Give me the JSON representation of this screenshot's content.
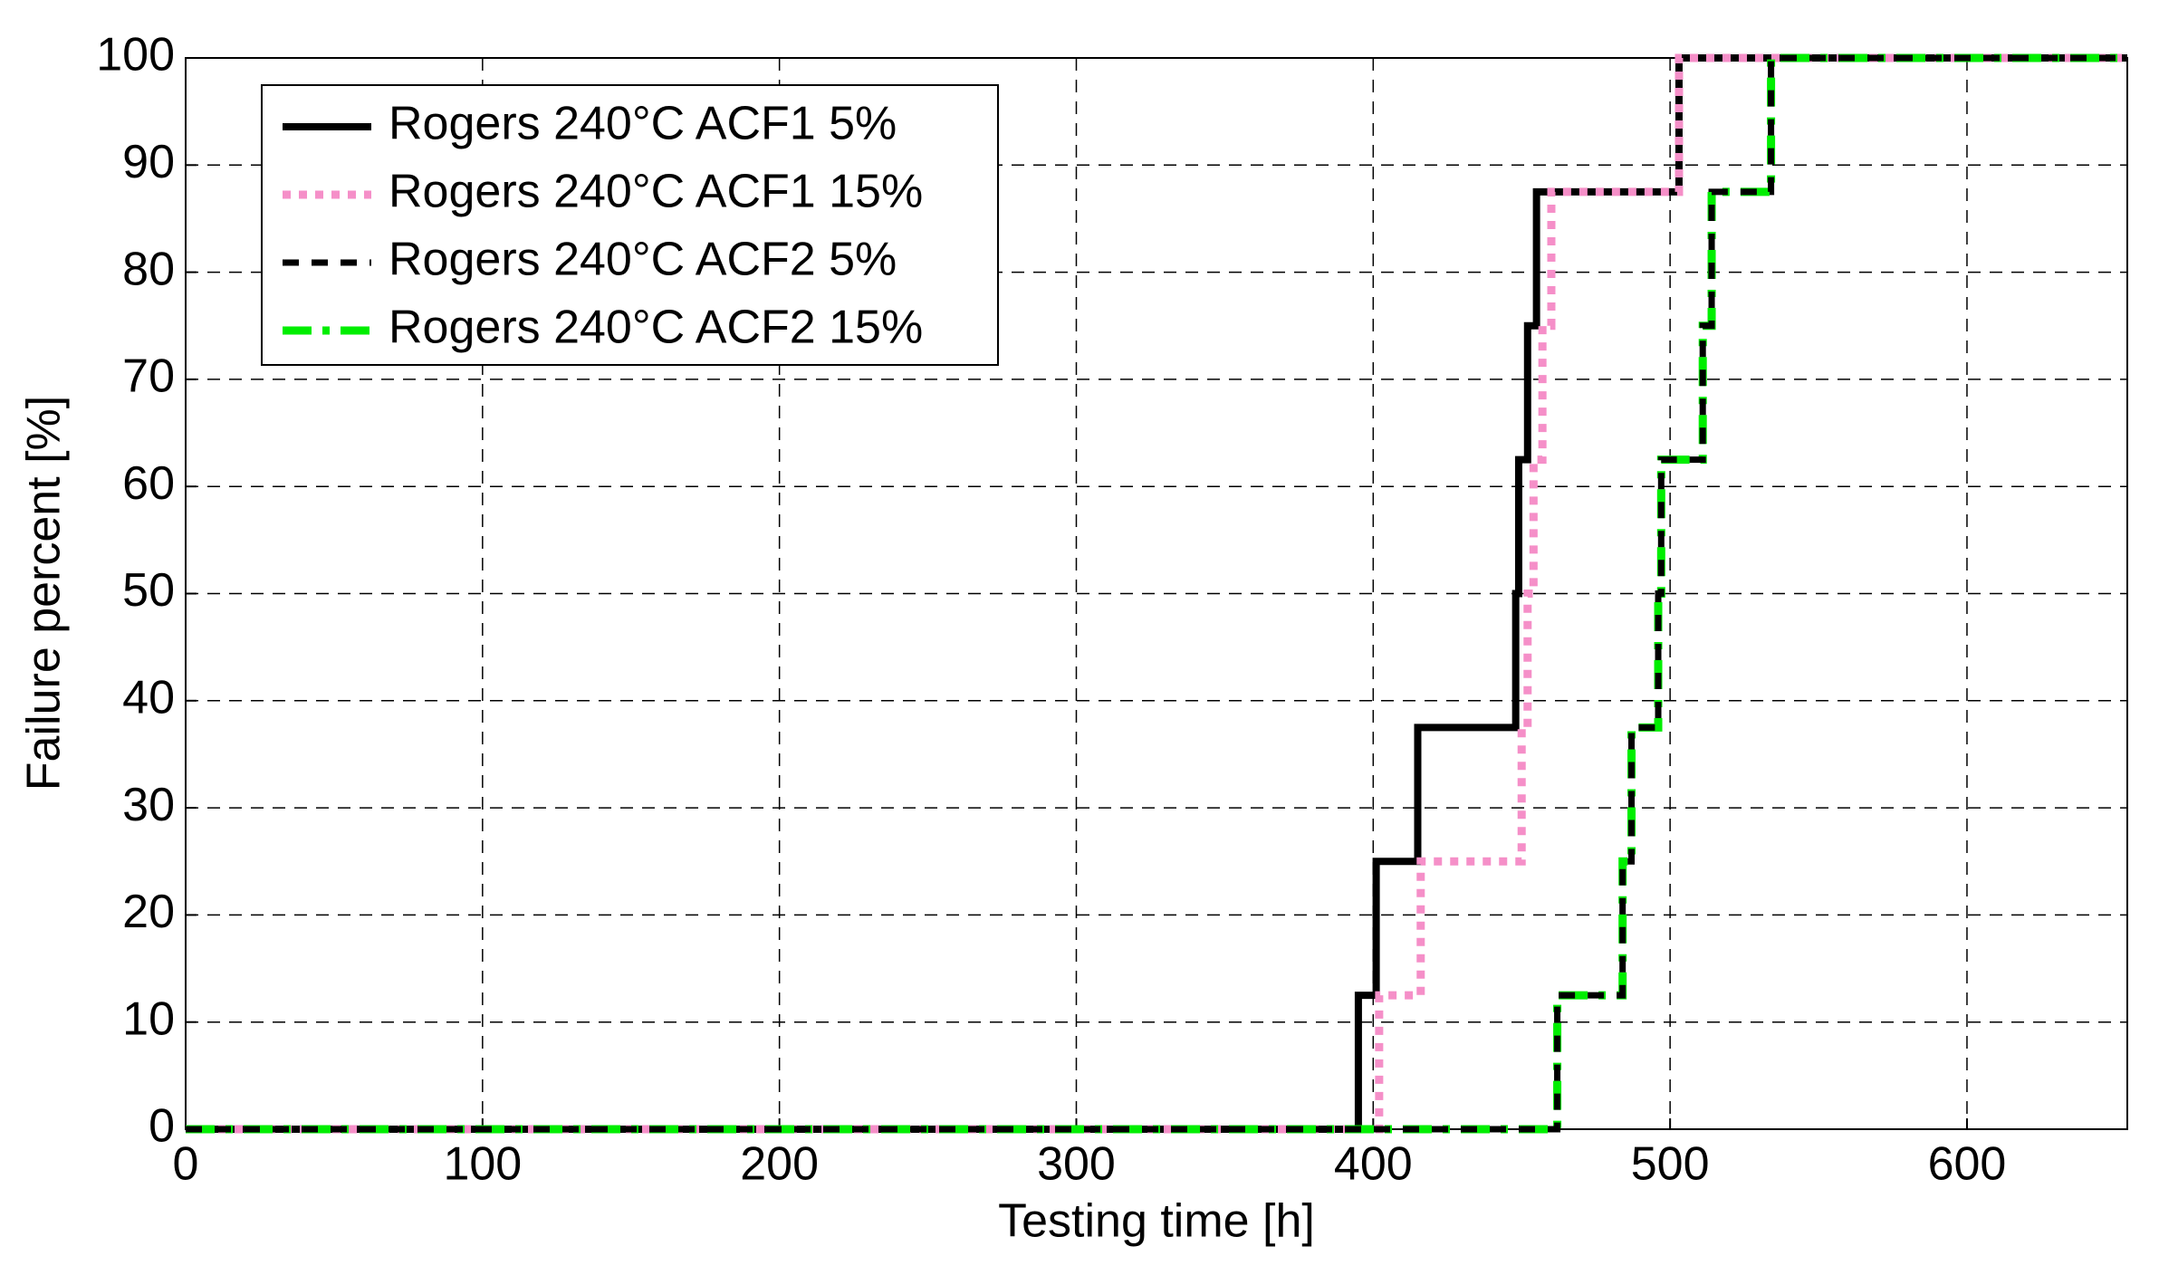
{
  "chart_data": {
    "type": "line",
    "xlabel": "Testing time [h]",
    "ylabel": "Failure percent [%]",
    "xlim": [
      0,
      654
    ],
    "ylim": [
      0,
      100
    ],
    "xticks": [
      0,
      100,
      200,
      300,
      400,
      500,
      600
    ],
    "yticks": [
      0,
      10,
      20,
      30,
      40,
      50,
      60,
      70,
      80,
      90,
      100
    ],
    "grid": true,
    "legend": "upper left",
    "series": [
      {
        "name": "Rogers 240°C ACF1 5%",
        "color": "#000000",
        "style": "solid",
        "x": [
          0,
          395,
          395,
          401,
          401,
          415,
          415,
          448,
          448,
          449,
          449,
          452,
          452,
          455,
          455,
          503,
          503,
          654
        ],
        "values": [
          0,
          0,
          12.5,
          12.5,
          25,
          25,
          37.5,
          37.5,
          50,
          50,
          62.5,
          62.5,
          75,
          75,
          87.5,
          87.5,
          100,
          100
        ]
      },
      {
        "name": "Rogers 240°C ACF1 15%",
        "color": "#f58fc8",
        "style": "dotted",
        "x": [
          0,
          402,
          402,
          416,
          416,
          450,
          450,
          452,
          452,
          454,
          454,
          457,
          457,
          460,
          460,
          503,
          503,
          654
        ],
        "values": [
          0,
          0,
          12.5,
          12.5,
          25,
          25,
          37.5,
          37.5,
          50,
          50,
          62.5,
          62.5,
          75,
          75,
          87.5,
          87.5,
          100,
          100
        ]
      },
      {
        "name": "Rogers 240°C ACF2 5%",
        "color": "#000000",
        "style": "dashed",
        "x": [
          0,
          462,
          462,
          484,
          484,
          487,
          487,
          496,
          496,
          497,
          497,
          511,
          511,
          514,
          514,
          534,
          534,
          654
        ],
        "values": [
          0,
          0,
          12.5,
          12.5,
          25,
          25,
          37.5,
          37.5,
          50,
          50,
          62.5,
          62.5,
          75,
          75,
          87.5,
          87.5,
          100,
          100
        ]
      },
      {
        "name": "Rogers 240°C ACF2 15%",
        "color": "#00ee00",
        "style": "dashdot",
        "x": [
          0,
          462,
          462,
          484,
          484,
          487,
          487,
          496,
          496,
          497,
          497,
          511,
          511,
          514,
          514,
          534,
          534,
          654
        ],
        "values": [
          0,
          0,
          12.5,
          12.5,
          25,
          25,
          37.5,
          37.5,
          50,
          50,
          62.5,
          62.5,
          75,
          75,
          87.5,
          87.5,
          100,
          100
        ]
      }
    ]
  }
}
